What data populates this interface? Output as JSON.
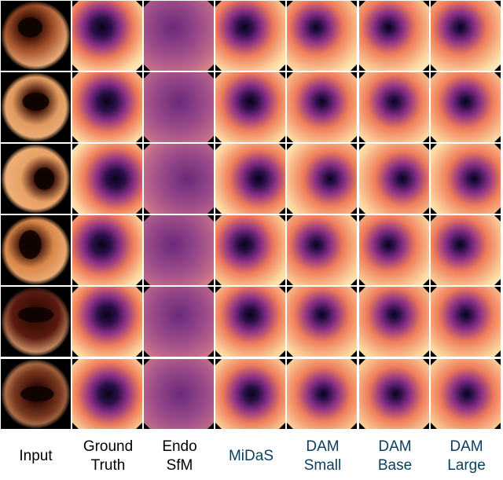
{
  "columns": [
    {
      "key": "input",
      "label_lines": [
        "Input"
      ],
      "color": "#000000"
    },
    {
      "key": "gt",
      "label_lines": [
        "Ground",
        "Truth"
      ],
      "color": "#000000"
    },
    {
      "key": "endosfm",
      "label_lines": [
        "Endo",
        "SfM"
      ],
      "color": "#000000"
    },
    {
      "key": "midas",
      "label_lines": [
        "MiDaS"
      ],
      "color": "#0b3d5c"
    },
    {
      "key": "dam_small",
      "label_lines": [
        "DAM",
        "Small"
      ],
      "color": "#0b3d5c"
    },
    {
      "key": "dam_base",
      "label_lines": [
        "DAM",
        "Base"
      ],
      "color": "#0b3d5c"
    },
    {
      "key": "dam_large",
      "label_lines": [
        "DAM",
        "Large"
      ],
      "color": "#0b3d5c"
    }
  ],
  "rows": 6
}
